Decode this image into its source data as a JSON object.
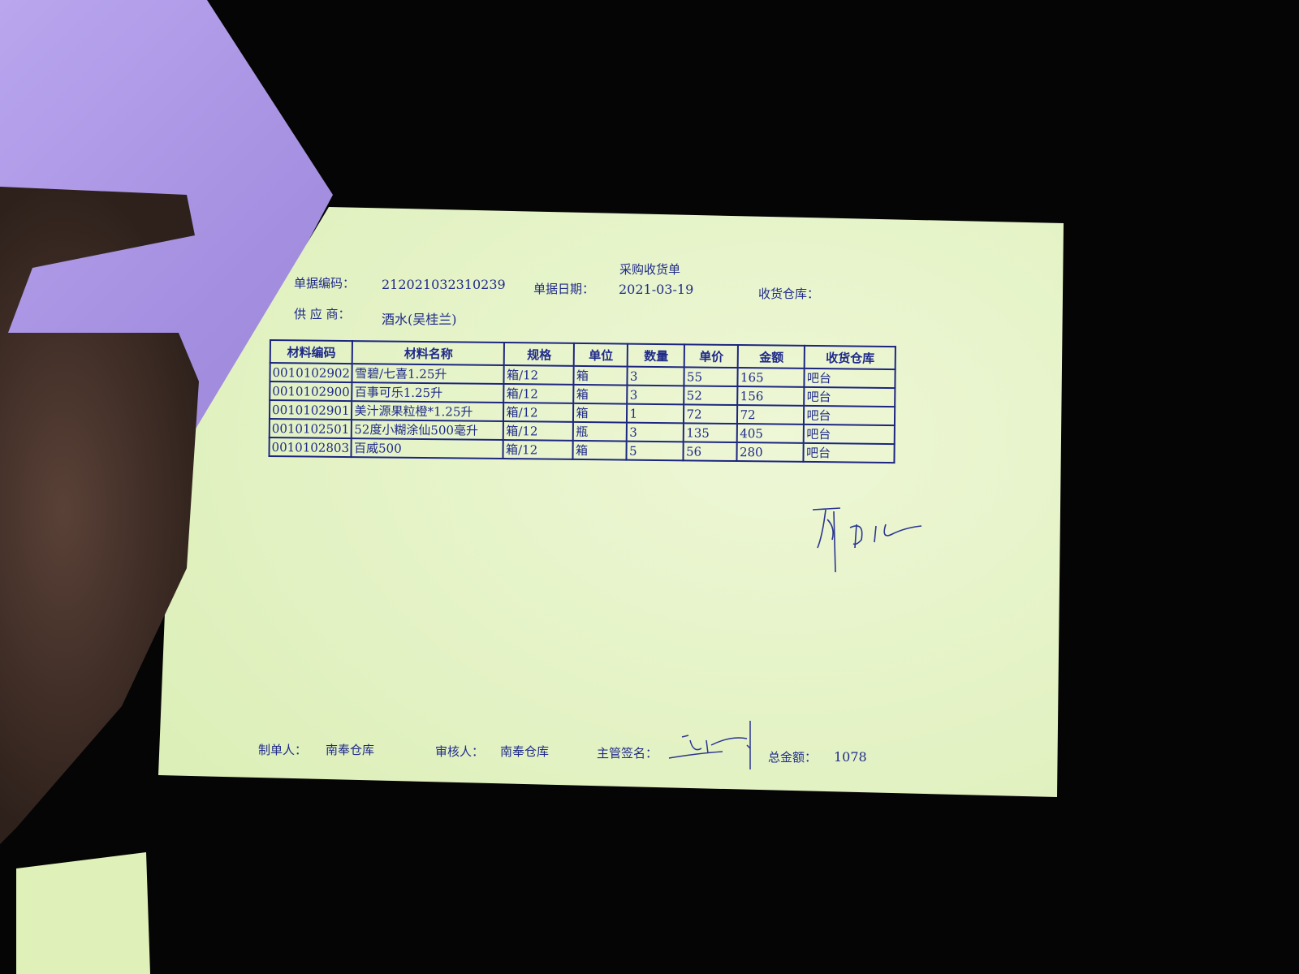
{
  "document": {
    "title": "采购收货单",
    "doc_no_label": "单据编码：",
    "doc_no": "212021032310239",
    "date_label": "单据日期：",
    "date": "2021-03-19",
    "warehouse_label": "收货仓库：",
    "supplier_label": "供 应 商：",
    "supplier": "酒水(吴桂兰)",
    "table": {
      "headers": [
        "材料编码",
        "材料名称",
        "规格",
        "单位",
        "数量",
        "单价",
        "金额",
        "收货仓库"
      ],
      "rows": [
        [
          "0010102902",
          "雪碧/七喜1.25升",
          "箱/12",
          "箱",
          "3",
          "55",
          "165",
          "吧台"
        ],
        [
          "0010102900",
          "百事可乐1.25升",
          "箱/12",
          "箱",
          "3",
          "52",
          "156",
          "吧台"
        ],
        [
          "0010102901",
          "美汁源果粒橙*1.25升",
          "箱/12",
          "箱",
          "1",
          "72",
          "72",
          "吧台"
        ],
        [
          "0010102501",
          "52度小糊涂仙500毫升",
          "箱/12",
          "瓶",
          "3",
          "135",
          "405",
          "吧台"
        ],
        [
          "0010102803",
          "百威500",
          "箱/12",
          "箱",
          "5",
          "56",
          "280",
          "吧台"
        ]
      ]
    },
    "footer": {
      "maker_label": "制单人：",
      "maker": "南奉仓库",
      "reviewer_label": "审核人：",
      "reviewer": "南奉仓库",
      "supervisor_label": "主管签名：",
      "total_label": "总金额：",
      "total": "1078"
    },
    "colors": {
      "paper": "#e2f2c0",
      "ink": "#1f2a8a",
      "background": "#050505",
      "purple_sheet": "#ab96e6"
    }
  }
}
